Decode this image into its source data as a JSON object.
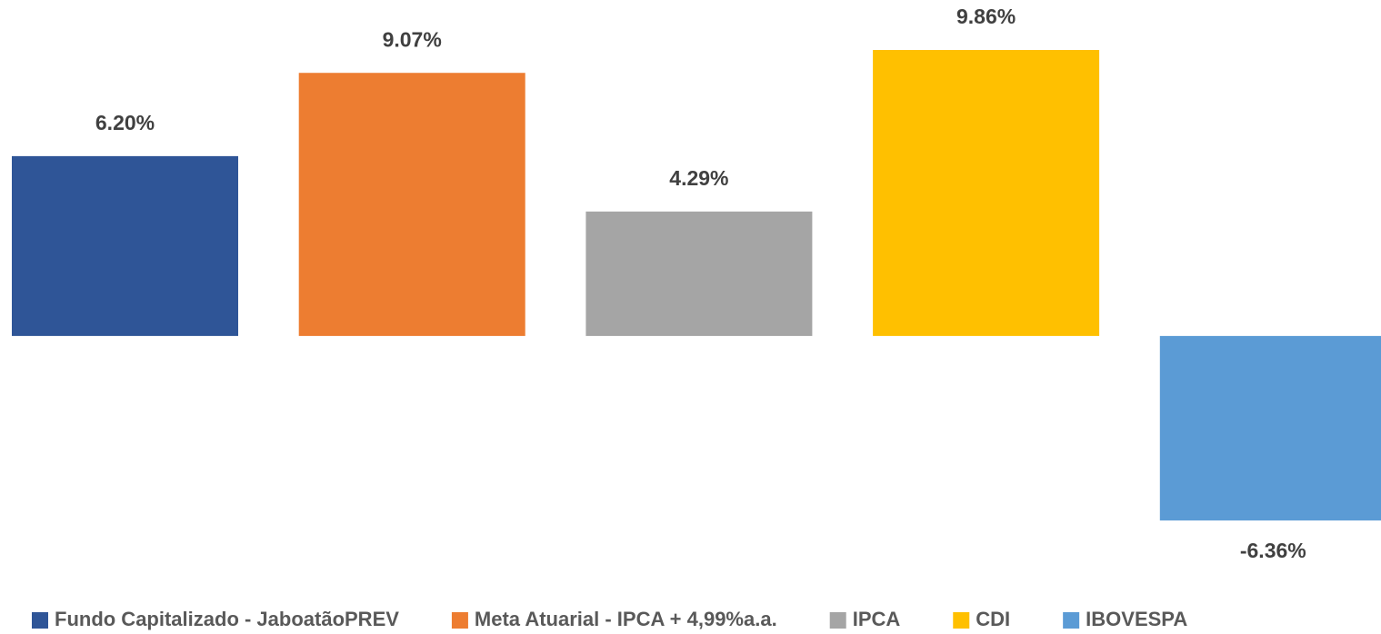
{
  "chart_data": {
    "type": "bar",
    "series": [
      {
        "name": "Fundo Capitalizado - JaboatãoPREV",
        "color": "#2f5597",
        "values": [
          6.2
        ],
        "value_labels": [
          "6.20%"
        ]
      },
      {
        "name": "Meta Atuarial - IPCA + 4,99%a.a.",
        "color": "#ed7d31",
        "values": [
          9.07
        ],
        "value_labels": [
          "9.07%"
        ]
      },
      {
        "name": "IPCA",
        "color": "#a5a5a5",
        "values": [
          4.29
        ],
        "value_labels": [
          "4.29%"
        ]
      },
      {
        "name": "CDI",
        "color": "#ffc000",
        "values": [
          9.86
        ],
        "value_labels": [
          "9.86%"
        ]
      },
      {
        "name": "IBOVESPA",
        "color": "#5b9bd5",
        "values": [
          -6.36
        ],
        "value_labels": [
          "-6.36%"
        ]
      }
    ],
    "legend": "bottom"
  }
}
